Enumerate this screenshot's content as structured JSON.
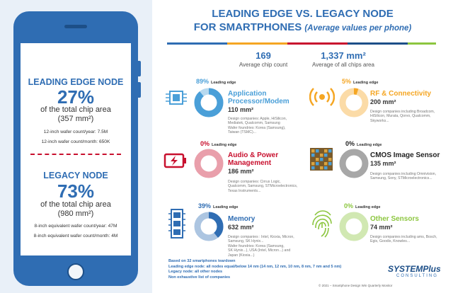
{
  "title": {
    "line1": "LEADING EDGE VS. LEGACY NODE",
    "line2_bold": "FOR SMARTPHONES",
    "line2_italic": "(Average values per phone)"
  },
  "stats": {
    "chip_count_value": "169",
    "chip_count_label": "Average chip count",
    "area_value": "1,337 mm²",
    "area_label": "Average of all chips area"
  },
  "leading": {
    "title": "LEADING EDGE NODE",
    "pct": "27%",
    "line1": "of the total chip area",
    "line2": "(357 mm²)",
    "wafer_year": "12-inch wafer count/year: 7.5M",
    "wafer_month": "12-inch wafer count/month: 650K"
  },
  "legacy": {
    "title": "LEGACY NODE",
    "pct": "73%",
    "line1": "of the total chip area",
    "line2": "(980 mm²)",
    "wafer_year": "8-inch equivalent wafer count/year: 47M",
    "wafer_month": "8-inch equivalent wafer count/month: 4M"
  },
  "leading_edge_label": "Leading edge",
  "categories": [
    {
      "name": "Application Processor/Modem",
      "line1": "Application",
      "line2": "Processor/Modem",
      "pct": "89%",
      "pct_value": 89,
      "area": "110 mm²",
      "color": "#4a9fd8",
      "icon": "cpu-chip-icon",
      "desc": [
        "Design companies: Apple, HiSilicon,",
        "Mediatek, Qualcomm, Samsung",
        "Wafer foundries: Korea (Samsung),",
        "Taiwan (TSMC)..."
      ]
    },
    {
      "name": "RF & Connectivity",
      "line1": "RF & Connectivity",
      "line2": "",
      "pct": "5%",
      "pct_value": 5,
      "area": "200 mm²",
      "color": "#f5a623",
      "icon": "wireless-signal-icon",
      "desc": [
        "Design companies including Broadcom,",
        "HiSilicon, Murata, Qorvo, Qualcomm,",
        "Skyworks..."
      ]
    },
    {
      "name": "Audio & Power Management",
      "line1": "Audio & Power",
      "line2": "Management",
      "pct": "0%",
      "pct_value": 0,
      "area": "186 mm²",
      "color": "#c8102e",
      "icon": "battery-charging-icon",
      "desc": [
        "Design companies: Cirrus Logic,",
        "Qualcomm, Samsung, STMicroelectronics,",
        "Texas Instruments..."
      ]
    },
    {
      "name": "CMOS Image Sensor",
      "line1": "CMOS Image Sensor",
      "line2": "",
      "pct": "0%",
      "pct_value": 0,
      "area": "135 mm²",
      "color": "#222222",
      "icon": "image-sensor-grid-icon",
      "desc": [
        "Design companies including Omnivision,",
        "Samsung, Sony, STMicroelectronics..."
      ]
    },
    {
      "name": "Memory",
      "line1": "Memory",
      "line2": "",
      "pct": "39%",
      "pct_value": 39,
      "area": "632 mm²",
      "color": "#2f6db3",
      "icon": "memory-module-icon",
      "desc": [
        "Design companies : Intel, Kioxia, Micron,",
        "Samsung, SK Hynix...",
        "Wafer foundries: Korea (Samsung,",
        "SK Hynix...), USA (Intel, Micron...) and",
        "Japan (Kioxia...)"
      ]
    },
    {
      "name": "Other Sensors",
      "line1": "Other Sensors",
      "line2": "",
      "pct": "0%",
      "pct_value": 0,
      "area": "74 mm²",
      "color": "#8cc63f",
      "icon": "fingerprint-icon",
      "desc": [
        "Design companies including ams, Bosch,",
        "Egis, Goodix, Knowles..."
      ]
    }
  ],
  "footnotes": [
    "Based on 32 smartphones teardown",
    "Leading edge node: all nodes equal/below 14 nm (14 nm, 12 nm, 10 nm, 8 nm, 7 nm and 5 nm)",
    "Legacy node: all other nodes",
    "Non exhaustive list of companies"
  ],
  "logo": {
    "main": "SYSTEMPlus",
    "sub": "CONSULTING"
  },
  "copyright": "© 2021 – Smartphone Design Win Quarterly Monitor",
  "colors": {
    "brand_blue": "#2f6db3",
    "red": "#c8102e",
    "orange": "#f5a623",
    "green": "#8cc63f",
    "light_blue": "#4a9fd8"
  }
}
